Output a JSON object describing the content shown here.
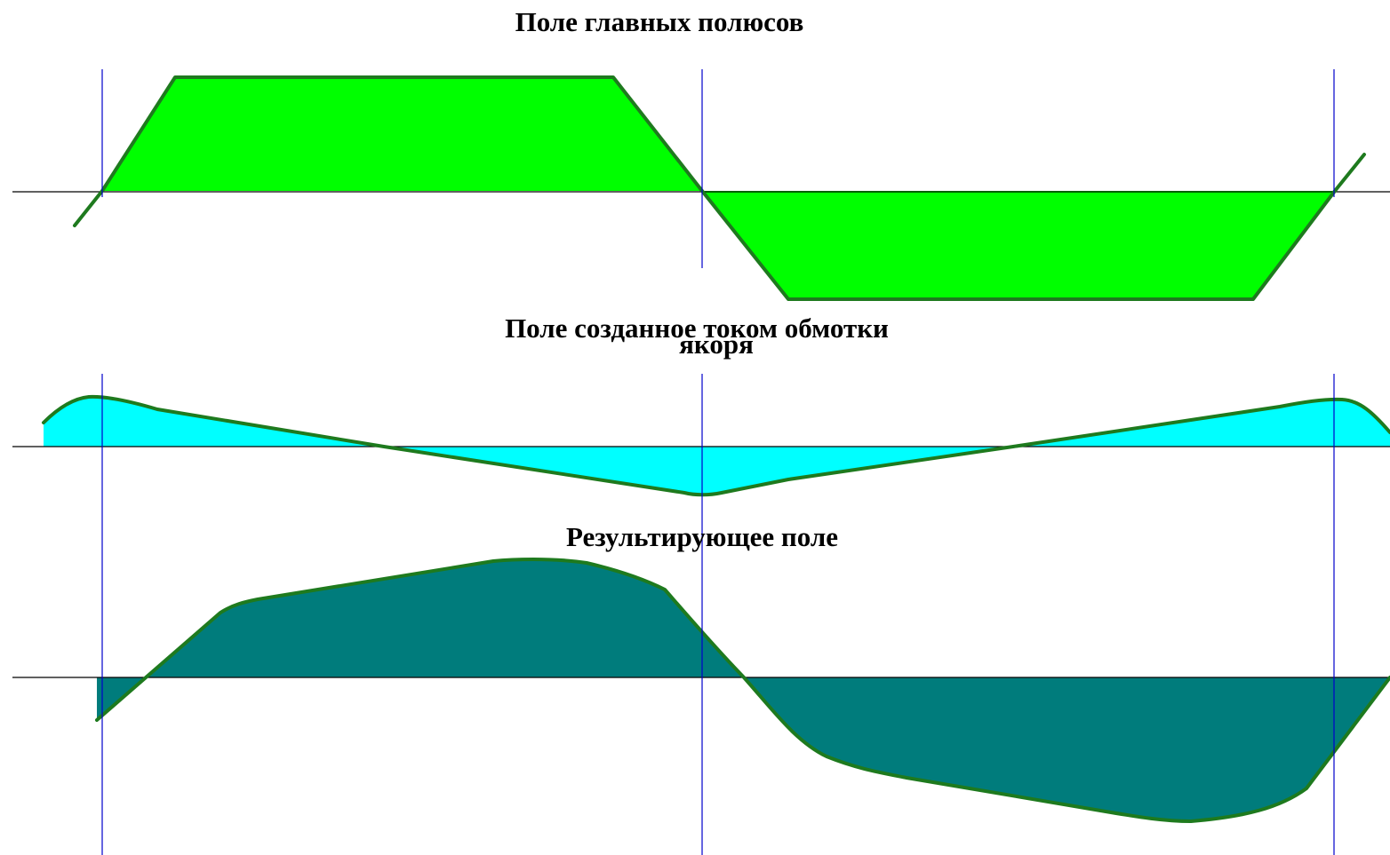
{
  "titles": {
    "main_poles": "Поле главных полюсов",
    "armature_line1": "Поле созданное током обмотки",
    "armature_line2": "якоря",
    "resultant": "Результирующее поле"
  },
  "colors": {
    "background": "#ffffff",
    "main_poles_fill": "#00ff00",
    "armature_fill": "#00ffff",
    "resultant_fill": "#007c7c",
    "curve_outline": "#1e7a1e",
    "axis_line": "#000000",
    "divider_line": "#0000cc"
  }
}
